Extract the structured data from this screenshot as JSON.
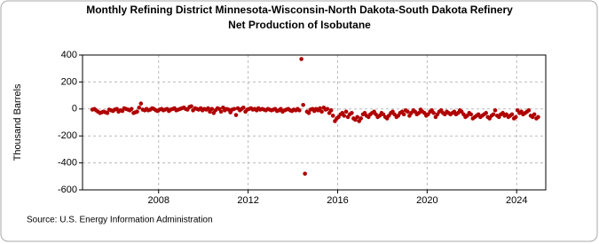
{
  "chart_data": {
    "type": "scatter",
    "title": "Monthly Refining District Minnesota-Wisconsin-North Dakota-South Dakota Refinery Net Production of Isobutane",
    "y_label": "Thousand Barrels",
    "source": "Source: U.S. Energy Information Administration",
    "color": "#b00000",
    "grid": true,
    "xlim": [
      2004.6,
      2025.3
    ],
    "xticks": [
      2008,
      2012,
      2016,
      2020,
      2024
    ],
    "ylim": [
      -600,
      400
    ],
    "yticks": [
      -600,
      -400,
      -200,
      0,
      200,
      400
    ],
    "x": [
      2005.04,
      2005.13,
      2005.21,
      2005.29,
      2005.38,
      2005.46,
      2005.54,
      2005.63,
      2005.71,
      2005.79,
      2005.88,
      2005.96,
      2006.04,
      2006.13,
      2006.21,
      2006.29,
      2006.38,
      2006.46,
      2006.54,
      2006.63,
      2006.71,
      2006.79,
      2006.88,
      2006.96,
      2007.04,
      2007.13,
      2007.21,
      2007.29,
      2007.38,
      2007.46,
      2007.54,
      2007.63,
      2007.71,
      2007.79,
      2007.88,
      2007.96,
      2008.04,
      2008.13,
      2008.21,
      2008.29,
      2008.38,
      2008.46,
      2008.54,
      2008.63,
      2008.71,
      2008.79,
      2008.88,
      2008.96,
      2009.04,
      2009.13,
      2009.21,
      2009.29,
      2009.38,
      2009.46,
      2009.54,
      2009.63,
      2009.71,
      2009.79,
      2009.88,
      2009.96,
      2010.04,
      2010.13,
      2010.21,
      2010.29,
      2010.38,
      2010.46,
      2010.54,
      2010.63,
      2010.71,
      2010.79,
      2010.88,
      2010.96,
      2011.04,
      2011.13,
      2011.21,
      2011.29,
      2011.38,
      2011.46,
      2011.54,
      2011.63,
      2011.71,
      2011.79,
      2011.88,
      2011.96,
      2012.04,
      2012.13,
      2012.21,
      2012.29,
      2012.38,
      2012.46,
      2012.54,
      2012.63,
      2012.71,
      2012.79,
      2012.88,
      2012.96,
      2013.04,
      2013.13,
      2013.21,
      2013.29,
      2013.38,
      2013.46,
      2013.54,
      2013.63,
      2013.71,
      2013.79,
      2013.88,
      2013.96,
      2014.04,
      2014.13,
      2014.21,
      2014.29,
      2014.38,
      2014.46,
      2014.54,
      2014.63,
      2014.71,
      2014.79,
      2014.88,
      2014.96,
      2015.04,
      2015.13,
      2015.21,
      2015.29,
      2015.38,
      2015.46,
      2015.54,
      2015.63,
      2015.71,
      2015.79,
      2015.88,
      2015.96,
      2016.04,
      2016.13,
      2016.21,
      2016.29,
      2016.38,
      2016.46,
      2016.54,
      2016.63,
      2016.71,
      2016.79,
      2016.88,
      2016.96,
      2017.04,
      2017.13,
      2017.21,
      2017.29,
      2017.38,
      2017.46,
      2017.54,
      2017.63,
      2017.71,
      2017.79,
      2017.88,
      2017.96,
      2018.04,
      2018.13,
      2018.21,
      2018.29,
      2018.38,
      2018.46,
      2018.54,
      2018.63,
      2018.71,
      2018.79,
      2018.88,
      2018.96,
      2019.04,
      2019.13,
      2019.21,
      2019.29,
      2019.38,
      2019.46,
      2019.54,
      2019.63,
      2019.71,
      2019.79,
      2019.88,
      2019.96,
      2020.04,
      2020.13,
      2020.21,
      2020.29,
      2020.38,
      2020.46,
      2020.54,
      2020.63,
      2020.71,
      2020.79,
      2020.88,
      2020.96,
      2021.04,
      2021.13,
      2021.21,
      2021.29,
      2021.38,
      2021.46,
      2021.54,
      2021.63,
      2021.71,
      2021.79,
      2021.88,
      2021.96,
      2022.04,
      2022.13,
      2022.21,
      2022.29,
      2022.38,
      2022.46,
      2022.54,
      2022.63,
      2022.71,
      2022.79,
      2022.88,
      2022.96,
      2023.04,
      2023.13,
      2023.21,
      2023.29,
      2023.38,
      2023.46,
      2023.54,
      2023.63,
      2023.71,
      2023.79,
      2023.88,
      2023.96,
      2024.04,
      2024.13,
      2024.21,
      2024.29,
      2024.38,
      2024.46,
      2024.54,
      2024.63,
      2024.71,
      2024.79,
      2024.88,
      2024.96
    ],
    "values": [
      -5,
      0,
      -10,
      -20,
      -30,
      -25,
      -20,
      -25,
      -30,
      -5,
      -10,
      -15,
      -5,
      0,
      -20,
      -10,
      -15,
      5,
      0,
      -5,
      -10,
      0,
      -30,
      -25,
      -20,
      10,
      40,
      -5,
      -10,
      0,
      -10,
      -5,
      5,
      0,
      -10,
      -15,
      -5,
      0,
      -10,
      -5,
      0,
      -15,
      -5,
      0,
      5,
      -10,
      -5,
      0,
      5,
      10,
      0,
      -5,
      15,
      20,
      -10,
      5,
      0,
      -5,
      5,
      -10,
      0,
      -5,
      5,
      -20,
      0,
      -30,
      -10,
      5,
      0,
      -20,
      10,
      -10,
      0,
      -5,
      -25,
      -5,
      0,
      -45,
      5,
      -10,
      0,
      10,
      -20,
      -5,
      0,
      5,
      -5,
      0,
      -10,
      5,
      -5,
      0,
      -5,
      -10,
      0,
      -5,
      -10,
      -5,
      0,
      -15,
      -10,
      0,
      -20,
      -10,
      -5,
      0,
      -10,
      -15,
      -5,
      -10,
      0,
      -10,
      370,
      30,
      -480,
      -20,
      -30,
      -5,
      0,
      -15,
      0,
      -10,
      5,
      -20,
      10,
      -5,
      0,
      -30,
      -10,
      -50,
      -90,
      -70,
      -60,
      -40,
      -30,
      -50,
      -20,
      -60,
      -40,
      -30,
      -70,
      -80,
      -60,
      -90,
      -70,
      -40,
      -30,
      -50,
      -60,
      -40,
      -30,
      -20,
      -40,
      -60,
      -50,
      -30,
      -40,
      -60,
      -70,
      -50,
      -30,
      -20,
      -40,
      -60,
      -50,
      -30,
      -20,
      -40,
      -10,
      -20,
      -50,
      -30,
      -10,
      -20,
      -40,
      -30,
      -5,
      -20,
      -30,
      -50,
      -40,
      -20,
      -10,
      -30,
      -60,
      -40,
      -20,
      -10,
      -30,
      -40,
      -20,
      -30,
      -40,
      -30,
      -20,
      -40,
      -30,
      -10,
      -20,
      -40,
      -60,
      -50,
      -30,
      -40,
      -70,
      -60,
      -50,
      -40,
      -60,
      -50,
      -40,
      -30,
      -60,
      -70,
      -50,
      -40,
      -10,
      -50,
      -60,
      -40,
      -30,
      -50,
      -40,
      -60,
      -50,
      -40,
      -70,
      -60,
      -10,
      -30,
      -20,
      -40,
      -30,
      -20,
      -10,
      -50,
      -60,
      -40,
      -70,
      -60
    ]
  }
}
